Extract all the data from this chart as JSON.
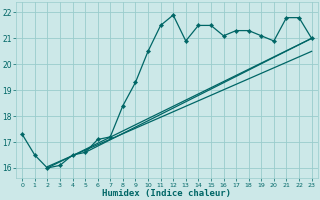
{
  "xlabel": "Humidex (Indice chaleur)",
  "bg_color": "#cce8e8",
  "grid_color": "#99cccc",
  "line_color": "#006666",
  "xlim": [
    -0.5,
    23.5
  ],
  "ylim": [
    15.6,
    22.4
  ],
  "x_ticks": [
    0,
    1,
    2,
    3,
    4,
    5,
    6,
    7,
    8,
    9,
    10,
    11,
    12,
    13,
    14,
    15,
    16,
    17,
    18,
    19,
    20,
    21,
    22,
    23
  ],
  "y_ticks": [
    16,
    17,
    18,
    19,
    20,
    21,
    22
  ],
  "main_line_x": [
    0,
    1,
    2,
    3,
    4,
    5,
    6,
    7,
    8,
    9,
    10,
    11,
    12,
    13,
    14,
    15,
    16,
    17,
    18,
    19,
    20,
    21,
    22,
    23
  ],
  "main_line_y": [
    17.3,
    16.5,
    16.0,
    16.1,
    16.5,
    16.6,
    17.1,
    17.2,
    18.4,
    19.3,
    20.5,
    21.5,
    21.9,
    20.9,
    21.5,
    21.5,
    21.1,
    21.3,
    21.3,
    21.1,
    20.9,
    21.8,
    21.8,
    21.0
  ],
  "trend_line1_x": [
    2,
    23
  ],
  "trend_line1_y": [
    16.0,
    21.0
  ],
  "trend_line2_x": [
    2,
    23
  ],
  "trend_line2_y": [
    16.05,
    20.5
  ],
  "trend_line3_x": [
    5,
    23
  ],
  "trend_line3_y": [
    16.6,
    21.0
  ]
}
